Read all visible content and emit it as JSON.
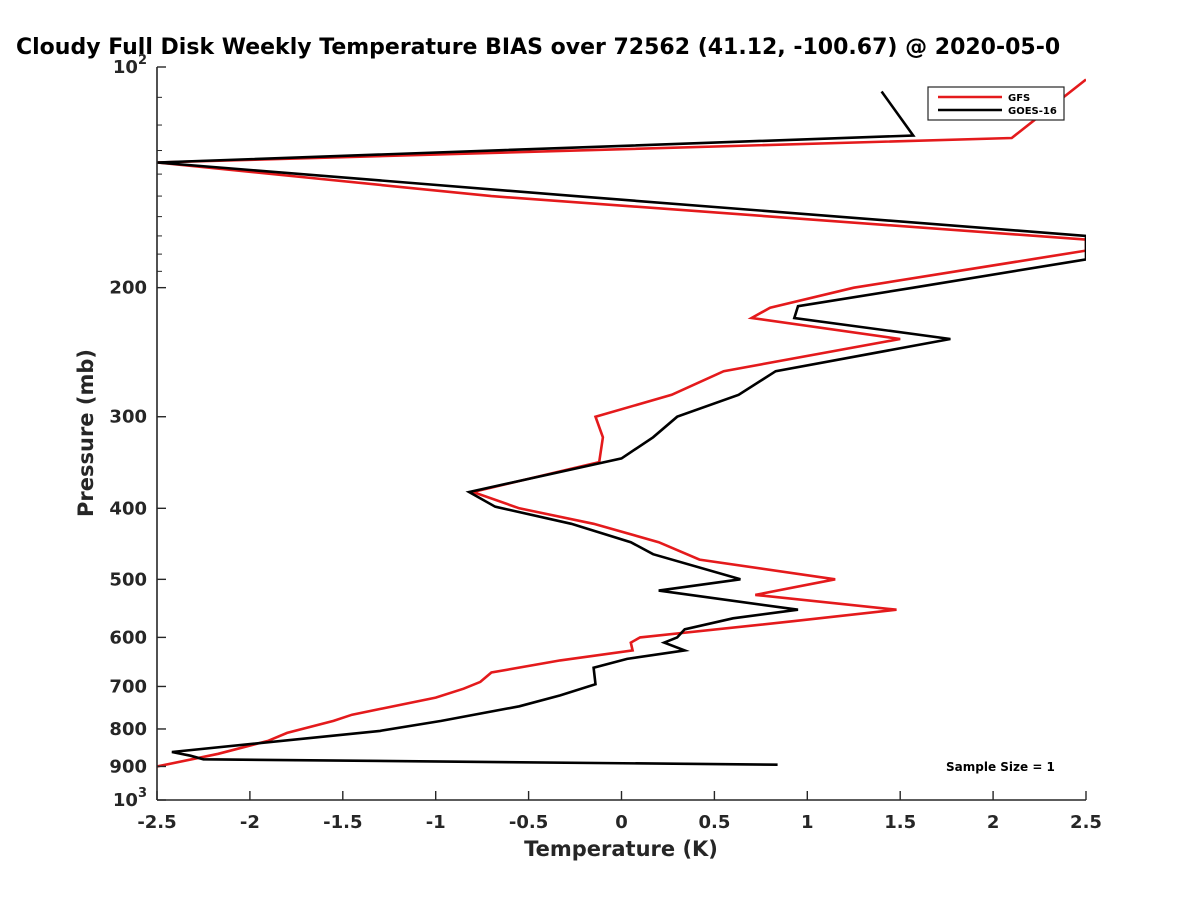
{
  "chart_data": {
    "type": "line",
    "title": "Cloudy Full Disk Weekly Temperature BIAS over 72562 (41.12, -100.67) @ 2020-05-0",
    "xlabel": "Temperature (K)",
    "ylabel": "Pressure (mb)",
    "xlim": [
      -2.5,
      2.5
    ],
    "ylim": [
      100,
      1000
    ],
    "yscale": "log",
    "y_reversed": true,
    "grid": false,
    "legend_position": "top-right",
    "x_ticks": [
      {
        "value": -2.5,
        "label": "-2.5"
      },
      {
        "value": -2,
        "label": "-2"
      },
      {
        "value": -1.5,
        "label": "-1.5"
      },
      {
        "value": -1,
        "label": "-1"
      },
      {
        "value": -0.5,
        "label": "-0.5"
      },
      {
        "value": 0,
        "label": "0"
      },
      {
        "value": 0.5,
        "label": "0.5"
      },
      {
        "value": 1,
        "label": "1"
      },
      {
        "value": 1.5,
        "label": "1.5"
      },
      {
        "value": 2,
        "label": "2"
      },
      {
        "value": 2.5,
        "label": "2.5"
      }
    ],
    "y_ticks": [
      {
        "value": 100,
        "label": "10",
        "sup": "2"
      },
      {
        "value": 200,
        "label": "200"
      },
      {
        "value": 300,
        "label": "300"
      },
      {
        "value": 400,
        "label": "400"
      },
      {
        "value": 500,
        "label": "500"
      },
      {
        "value": 600,
        "label": "600"
      },
      {
        "value": 700,
        "label": "700"
      },
      {
        "value": 800,
        "label": "800"
      },
      {
        "value": 900,
        "label": "900"
      },
      {
        "value": 1000,
        "label": "10",
        "sup": "3"
      }
    ],
    "series": [
      {
        "name": "GFS",
        "color": "#e41a1c",
        "points": [
          [
            2.5,
            104
          ],
          [
            2.1,
            125
          ],
          [
            -2.5,
            135
          ],
          [
            -0.7,
            150
          ],
          [
            2.5,
            172
          ],
          [
            2.5,
            178
          ],
          [
            1.25,
            200
          ],
          [
            0.8,
            213
          ],
          [
            0.7,
            220
          ],
          [
            1.5,
            235
          ],
          [
            0.55,
            260
          ],
          [
            0.27,
            280
          ],
          [
            -0.14,
            300
          ],
          [
            -0.1,
            320
          ],
          [
            -0.12,
            346
          ],
          [
            -0.8,
            380
          ],
          [
            -0.55,
            400
          ],
          [
            -0.15,
            420
          ],
          [
            0.2,
            445
          ],
          [
            0.42,
            470
          ],
          [
            1.15,
            500
          ],
          [
            0.72,
            525
          ],
          [
            1.48,
            550
          ],
          [
            0.93,
            570
          ],
          [
            0.1,
            600
          ],
          [
            0.05,
            610
          ],
          [
            0.06,
            625
          ],
          [
            -0.33,
            645
          ],
          [
            -0.7,
            670
          ],
          [
            -0.76,
            690
          ],
          [
            -0.85,
            705
          ],
          [
            -1.0,
            725
          ],
          [
            -1.45,
            765
          ],
          [
            -1.55,
            780
          ],
          [
            -1.8,
            810
          ],
          [
            -1.9,
            830
          ],
          [
            -2.17,
            865
          ],
          [
            -2.5,
            900
          ]
        ]
      },
      {
        "name": "GOES-16",
        "color": "#000000",
        "points": [
          [
            1.4,
            108
          ],
          [
            1.57,
            124
          ],
          [
            -2.5,
            135
          ],
          [
            -0.25,
            150
          ],
          [
            2.5,
            170
          ],
          [
            2.5,
            183
          ],
          [
            1.57,
            200
          ],
          [
            0.95,
            212
          ],
          [
            0.93,
            220
          ],
          [
            1.77,
            235
          ],
          [
            0.83,
            260
          ],
          [
            0.63,
            280
          ],
          [
            0.3,
            300
          ],
          [
            0.17,
            320
          ],
          [
            0.0,
            342
          ],
          [
            -0.82,
            380
          ],
          [
            -0.68,
            398
          ],
          [
            -0.27,
            420
          ],
          [
            0.05,
            445
          ],
          [
            0.17,
            462
          ],
          [
            0.64,
            500
          ],
          [
            0.2,
            518
          ],
          [
            0.95,
            550
          ],
          [
            0.6,
            565
          ],
          [
            0.34,
            585
          ],
          [
            0.3,
            600
          ],
          [
            0.23,
            610
          ],
          [
            0.34,
            625
          ],
          [
            0.03,
            642
          ],
          [
            -0.15,
            660
          ],
          [
            -0.14,
            695
          ],
          [
            -0.33,
            720
          ],
          [
            -0.55,
            745
          ],
          [
            -0.97,
            780
          ],
          [
            -1.3,
            805
          ],
          [
            -2.42,
            860
          ],
          [
            -2.32,
            870
          ],
          [
            -2.25,
            880
          ],
          [
            0.84,
            895
          ]
        ]
      }
    ],
    "annotations": [
      {
        "text": "Sample Size = 1",
        "x": 2.15,
        "y": 895
      }
    ]
  }
}
